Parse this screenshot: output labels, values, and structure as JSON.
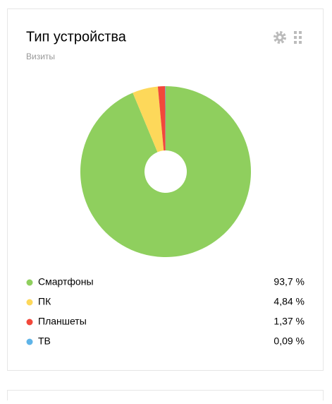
{
  "chart_data": {
    "type": "pie",
    "title": "Тип устройства",
    "subtitle": "Визиты",
    "categories": [
      "Смартфоны",
      "ПК",
      "Планшеты",
      "ТВ"
    ],
    "values": [
      93.7,
      4.84,
      1.37,
      0.09
    ],
    "value_labels": [
      "93,7 %",
      "4,84 %",
      "1,37 %",
      "0,09 %"
    ],
    "colors": [
      "#8fcf5e",
      "#fdd85a",
      "#f2483a",
      "#5fb4e8"
    ]
  }
}
